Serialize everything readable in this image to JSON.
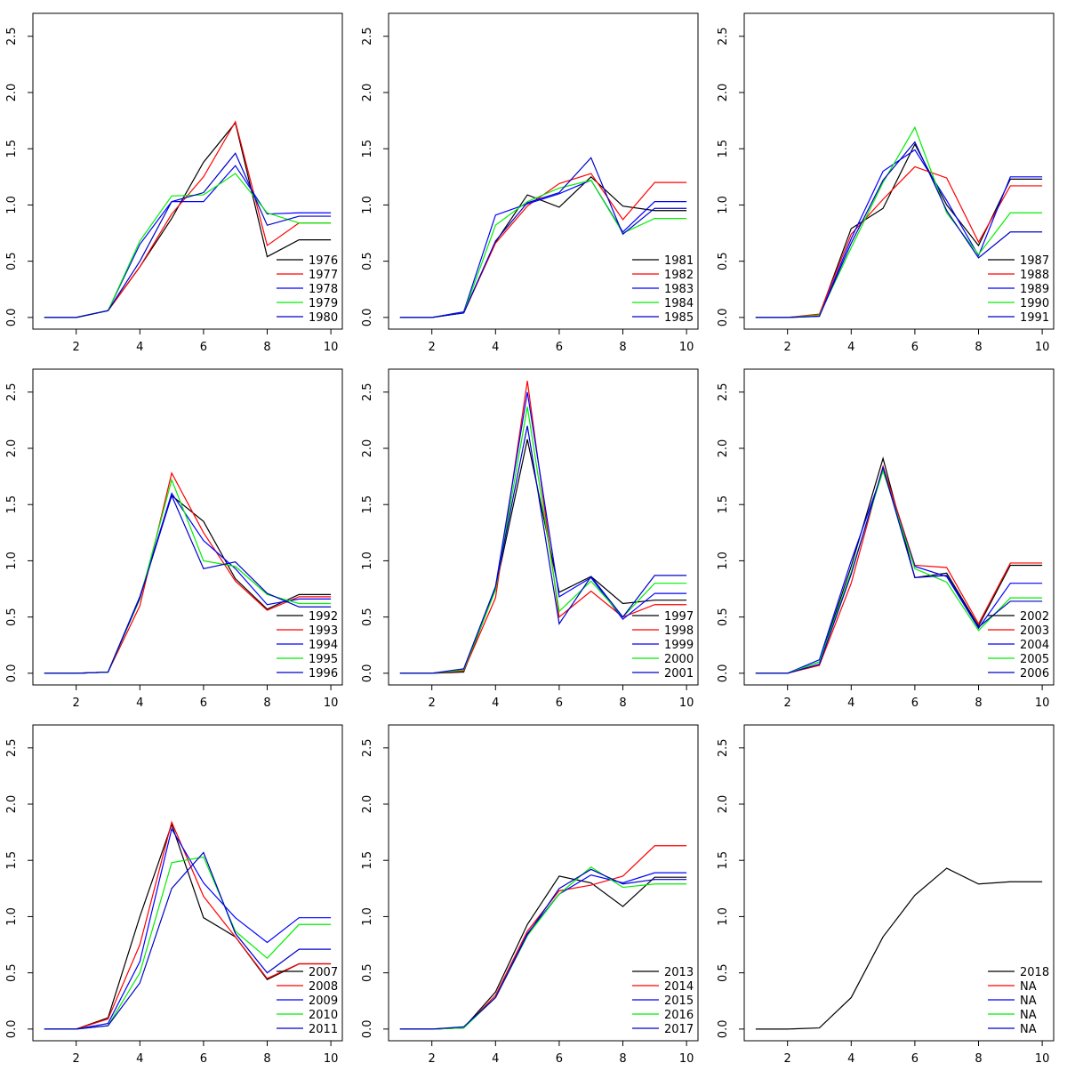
{
  "chart_data": [
    {
      "type": "line",
      "x": [
        1,
        2,
        3,
        4,
        5,
        6,
        7,
        8,
        9,
        10
      ],
      "xlim": [
        0.64,
        10.36
      ],
      "xticks": [
        2,
        4,
        6,
        8,
        10
      ],
      "ylim": [
        -0.104,
        2.704
      ],
      "yticks": [
        {
          "value": 0,
          "label": "0.0"
        },
        0.5,
        {
          "value": 1,
          "label": "1.0"
        },
        1.5,
        {
          "value": 2,
          "label": "2.0"
        },
        2.5
      ],
      "legend": "bottomright",
      "series": [
        {
          "name": "1976",
          "color": "#000000",
          "values": [
            0,
            0,
            0.06,
            0.45,
            0.88,
            1.38,
            1.73,
            0.54,
            0.69,
            0.69
          ]
        },
        {
          "name": "1977",
          "color": "#ff0000",
          "values": [
            0,
            0,
            0.06,
            0.45,
            0.92,
            1.25,
            1.74,
            0.64,
            0.84,
            0.84
          ]
        },
        {
          "name": "1978",
          "color": "#0000ff",
          "values": [
            0,
            0,
            0.06,
            0.65,
            1.03,
            1.03,
            1.35,
            0.92,
            0.93,
            0.93
          ]
        },
        {
          "name": "1979",
          "color": "#00ee00",
          "values": [
            0,
            0,
            0.06,
            0.68,
            1.08,
            1.09,
            1.28,
            0.93,
            0.84,
            0.84
          ]
        },
        {
          "name": "1980",
          "color": "#0000cc",
          "values": [
            0,
            0,
            0.06,
            0.5,
            1.03,
            1.11,
            1.46,
            0.82,
            0.9,
            0.9
          ]
        }
      ]
    },
    {
      "type": "line",
      "x": [
        1,
        2,
        3,
        4,
        5,
        6,
        7,
        8,
        9,
        10
      ],
      "xlim": [
        0.64,
        10.36
      ],
      "xticks": [
        2,
        4,
        6,
        8,
        10
      ],
      "ylim": [
        -0.104,
        2.704
      ],
      "yticks": [
        {
          "value": 0,
          "label": "0.0"
        },
        0.5,
        {
          "value": 1,
          "label": "1.0"
        },
        1.5,
        {
          "value": 2,
          "label": "2.0"
        },
        2.5
      ],
      "legend": "bottomright",
      "series": [
        {
          "name": "1981",
          "color": "#000000",
          "values": [
            0,
            0,
            0.04,
            0.67,
            1.09,
            0.98,
            1.25,
            0.99,
            0.95,
            0.95
          ]
        },
        {
          "name": "1982",
          "color": "#ff0000",
          "values": [
            0,
            0,
            0.04,
            0.66,
            0.99,
            1.19,
            1.28,
            0.87,
            1.2,
            1.2
          ]
        },
        {
          "name": "1983",
          "color": "#0000ff",
          "values": [
            0,
            0,
            0.05,
            0.91,
            1.01,
            1.1,
            1.22,
            0.76,
            1.03,
            1.03
          ]
        },
        {
          "name": "1984",
          "color": "#00ee00",
          "values": [
            0,
            0,
            0.04,
            0.82,
            1.03,
            1.15,
            1.22,
            0.75,
            0.88,
            0.88
          ]
        },
        {
          "name": "1985",
          "color": "#0000cc",
          "values": [
            0,
            0,
            0.04,
            0.68,
            1.02,
            1.11,
            1.42,
            0.74,
            0.97,
            0.97
          ]
        }
      ]
    },
    {
      "type": "line",
      "x": [
        1,
        2,
        3,
        4,
        5,
        6,
        7,
        8,
        9,
        10
      ],
      "xlim": [
        0.64,
        10.36
      ],
      "xticks": [
        2,
        4,
        6,
        8,
        10
      ],
      "ylim": [
        -0.104,
        2.704
      ],
      "yticks": [
        {
          "value": 0,
          "label": "0.0"
        },
        0.5,
        {
          "value": 1,
          "label": "1.0"
        },
        1.5,
        {
          "value": 2,
          "label": "2.0"
        },
        2.5
      ],
      "legend": "bottomright",
      "series": [
        {
          "name": "1987",
          "color": "#000000",
          "values": [
            0,
            0,
            0.02,
            0.79,
            0.97,
            1.54,
            1.0,
            0.64,
            1.23,
            1.23
          ]
        },
        {
          "name": "1988",
          "color": "#ff0000",
          "values": [
            0,
            0,
            0.03,
            0.74,
            1.05,
            1.34,
            1.24,
            0.67,
            1.17,
            1.17
          ]
        },
        {
          "name": "1989",
          "color": "#0000ff",
          "values": [
            0,
            0,
            0.01,
            0.7,
            1.3,
            1.49,
            1.04,
            0.55,
            1.25,
            1.25
          ]
        },
        {
          "name": "1990",
          "color": "#00ee00",
          "values": [
            0,
            0,
            0.02,
            0.62,
            1.2,
            1.69,
            0.93,
            0.56,
            0.93,
            0.93
          ]
        },
        {
          "name": "1991",
          "color": "#0000cc",
          "values": [
            0,
            0,
            0.01,
            0.66,
            1.22,
            1.56,
            0.95,
            0.53,
            0.76,
            0.76
          ]
        }
      ]
    },
    {
      "type": "line",
      "x": [
        1,
        2,
        3,
        4,
        5,
        6,
        7,
        8,
        9,
        10
      ],
      "xlim": [
        0.64,
        10.36
      ],
      "xticks": [
        2,
        4,
        6,
        8,
        10
      ],
      "ylim": [
        -0.104,
        2.704
      ],
      "yticks": [
        {
          "value": 0,
          "label": "0.0"
        },
        0.5,
        {
          "value": 1,
          "label": "1.0"
        },
        1.5,
        {
          "value": 2,
          "label": "2.0"
        },
        2.5
      ],
      "legend": "bottomright",
      "series": [
        {
          "name": "1992",
          "color": "#000000",
          "values": [
            0,
            0,
            0.01,
            0.68,
            1.58,
            1.35,
            0.84,
            0.57,
            0.7,
            0.7
          ]
        },
        {
          "name": "1993",
          "color": "#ff0000",
          "values": [
            0,
            0,
            0.01,
            0.6,
            1.78,
            1.25,
            0.82,
            0.56,
            0.68,
            0.68
          ]
        },
        {
          "name": "1994",
          "color": "#0000ff",
          "values": [
            0,
            0,
            0.01,
            0.68,
            1.6,
            1.18,
            0.93,
            0.61,
            0.66,
            0.66
          ]
        },
        {
          "name": "1995",
          "color": "#00ee00",
          "values": [
            0,
            0,
            0.01,
            0.66,
            1.72,
            1.0,
            0.95,
            0.7,
            0.62,
            0.62
          ]
        },
        {
          "name": "1996",
          "color": "#0000cc",
          "values": [
            0,
            0,
            0.01,
            0.67,
            1.58,
            0.93,
            0.99,
            0.71,
            0.59,
            0.59
          ]
        }
      ]
    },
    {
      "type": "line",
      "x": [
        1,
        2,
        3,
        4,
        5,
        6,
        7,
        8,
        9,
        10
      ],
      "xlim": [
        0.64,
        10.36
      ],
      "xticks": [
        2,
        4,
        6,
        8,
        10
      ],
      "ylim": [
        -0.104,
        2.704
      ],
      "yticks": [
        {
          "value": 0,
          "label": "0.0"
        },
        0.5,
        {
          "value": 1,
          "label": "1.0"
        },
        1.5,
        {
          "value": 2,
          "label": "2.0"
        },
        2.5
      ],
      "legend": "bottomright",
      "series": [
        {
          "name": "1997",
          "color": "#000000",
          "values": [
            0,
            0,
            0.01,
            0.75,
            2.08,
            0.72,
            0.86,
            0.62,
            0.65,
            0.65
          ]
        },
        {
          "name": "1998",
          "color": "#ff0000",
          "values": [
            0,
            0,
            0.02,
            0.67,
            2.6,
            0.5,
            0.73,
            0.5,
            0.61,
            0.61
          ]
        },
        {
          "name": "1999",
          "color": "#0000ff",
          "values": [
            0,
            0,
            0.03,
            0.77,
            2.5,
            0.68,
            0.85,
            0.48,
            0.71,
            0.71
          ]
        },
        {
          "name": "2000",
          "color": "#00ee00",
          "values": [
            0,
            0,
            0.03,
            0.74,
            2.37,
            0.55,
            0.82,
            0.5,
            0.8,
            0.8
          ]
        },
        {
          "name": "2001",
          "color": "#0000cc",
          "values": [
            0,
            0,
            0.04,
            0.77,
            2.2,
            0.44,
            0.86,
            0.5,
            0.87,
            0.87
          ]
        }
      ]
    },
    {
      "type": "line",
      "x": [
        1,
        2,
        3,
        4,
        5,
        6,
        7,
        8,
        9,
        10
      ],
      "xlim": [
        0.64,
        10.36
      ],
      "xticks": [
        2,
        4,
        6,
        8,
        10
      ],
      "ylim": [
        -0.104,
        2.704
      ],
      "yticks": [
        {
          "value": 0,
          "label": "0.0"
        },
        0.5,
        {
          "value": 1,
          "label": "1.0"
        },
        1.5,
        {
          "value": 2,
          "label": "2.0"
        },
        2.5
      ],
      "legend": "bottomright",
      "series": [
        {
          "name": "2002",
          "color": "#000000",
          "values": [
            0,
            0,
            0.1,
            0.95,
            1.91,
            0.85,
            0.89,
            0.42,
            0.96,
            0.96
          ]
        },
        {
          "name": "2003",
          "color": "#ff0000",
          "values": [
            0,
            0,
            0.07,
            0.8,
            1.84,
            0.96,
            0.94,
            0.44,
            0.98,
            0.98
          ]
        },
        {
          "name": "2004",
          "color": "#0000ff",
          "values": [
            0,
            0,
            0.12,
            1.0,
            1.8,
            0.95,
            0.86,
            0.4,
            0.8,
            0.8
          ]
        },
        {
          "name": "2005",
          "color": "#00ee00",
          "values": [
            0,
            0,
            0.1,
            0.9,
            1.8,
            0.93,
            0.81,
            0.38,
            0.67,
            0.67
          ]
        },
        {
          "name": "2006",
          "color": "#0000cc",
          "values": [
            0,
            0,
            0.08,
            0.88,
            1.83,
            0.85,
            0.87,
            0.41,
            0.64,
            0.64
          ]
        }
      ]
    },
    {
      "type": "line",
      "x": [
        1,
        2,
        3,
        4,
        5,
        6,
        7,
        8,
        9,
        10
      ],
      "xlim": [
        0.64,
        10.36
      ],
      "xticks": [
        2,
        4,
        6,
        8,
        10
      ],
      "ylim": [
        -0.104,
        2.704
      ],
      "yticks": [
        {
          "value": 0,
          "label": "0.0"
        },
        0.5,
        {
          "value": 1,
          "label": "1.0"
        },
        1.5,
        {
          "value": 2,
          "label": "2.0"
        },
        2.5
      ],
      "legend": "bottomright",
      "series": [
        {
          "name": "2007",
          "color": "#000000",
          "values": [
            0,
            0,
            0.1,
            1.0,
            1.82,
            0.99,
            0.82,
            0.44,
            0.58,
            0.58
          ]
        },
        {
          "name": "2008",
          "color": "#ff0000",
          "values": [
            0,
            0,
            0.09,
            0.75,
            1.84,
            1.18,
            0.82,
            0.45,
            0.58,
            0.58
          ]
        },
        {
          "name": "2009",
          "color": "#0000ff",
          "values": [
            0,
            0,
            0.05,
            0.6,
            1.78,
            1.3,
            0.99,
            0.77,
            0.99,
            0.99
          ]
        },
        {
          "name": "2010",
          "color": "#00ee00",
          "values": [
            0,
            0,
            0.03,
            0.5,
            1.48,
            1.53,
            0.87,
            0.63,
            0.93,
            0.93
          ]
        },
        {
          "name": "2011",
          "color": "#0000cc",
          "values": [
            0,
            0,
            0.03,
            0.41,
            1.25,
            1.57,
            0.85,
            0.5,
            0.71,
            0.71
          ]
        }
      ]
    },
    {
      "type": "line",
      "x": [
        1,
        2,
        3,
        4,
        5,
        6,
        7,
        8,
        9,
        10
      ],
      "xlim": [
        0.64,
        10.36
      ],
      "xticks": [
        2,
        4,
        6,
        8,
        10
      ],
      "ylim": [
        -0.104,
        2.704
      ],
      "yticks": [
        {
          "value": 0,
          "label": "0.0"
        },
        0.5,
        {
          "value": 1,
          "label": "1.0"
        },
        1.5,
        {
          "value": 2,
          "label": "2.0"
        },
        2.5
      ],
      "legend": "bottomright",
      "series": [
        {
          "name": "2013",
          "color": "#000000",
          "values": [
            0,
            0,
            0.01,
            0.33,
            0.93,
            1.36,
            1.3,
            1.09,
            1.35,
            1.35
          ]
        },
        {
          "name": "2014",
          "color": "#ff0000",
          "values": [
            0,
            0,
            0.01,
            0.3,
            0.87,
            1.23,
            1.28,
            1.36,
            1.63,
            1.63
          ]
        },
        {
          "name": "2015",
          "color": "#0000ff",
          "values": [
            0,
            0,
            0.01,
            0.28,
            0.85,
            1.2,
            1.37,
            1.3,
            1.39,
            1.39
          ]
        },
        {
          "name": "2016",
          "color": "#00ee00",
          "values": [
            0,
            0,
            0.01,
            0.28,
            0.83,
            1.2,
            1.44,
            1.26,
            1.29,
            1.29
          ]
        },
        {
          "name": "2017",
          "color": "#0000cc",
          "values": [
            0,
            0,
            0.02,
            0.28,
            0.84,
            1.25,
            1.42,
            1.29,
            1.33,
            1.33
          ]
        }
      ]
    },
    {
      "type": "line",
      "x": [
        1,
        2,
        3,
        4,
        5,
        6,
        7,
        8,
        9,
        10
      ],
      "xlim": [
        0.64,
        10.36
      ],
      "xticks": [
        2,
        4,
        6,
        8,
        10
      ],
      "ylim": [
        -0.104,
        2.704
      ],
      "yticks": [
        {
          "value": 0,
          "label": "0.0"
        },
        0.5,
        {
          "value": 1,
          "label": "1.0"
        },
        1.5,
        {
          "value": 2,
          "label": "2.0"
        },
        2.5
      ],
      "legend": "bottomright",
      "series": [
        {
          "name": "2018",
          "color": "#000000",
          "values": [
            0,
            0,
            0.01,
            0.28,
            0.82,
            1.19,
            1.43,
            1.29,
            1.31,
            1.31
          ]
        },
        {
          "name": "NA",
          "color": "#ff0000",
          "values": [
            null,
            null,
            null,
            null,
            null,
            null,
            null,
            null,
            null,
            null
          ]
        },
        {
          "name": "NA",
          "color": "#0000ff",
          "values": [
            null,
            null,
            null,
            null,
            null,
            null,
            null,
            null,
            null,
            null
          ]
        },
        {
          "name": "NA",
          "color": "#00ee00",
          "values": [
            null,
            null,
            null,
            null,
            null,
            null,
            null,
            null,
            null,
            null
          ]
        },
        {
          "name": "NA",
          "color": "#0000cc",
          "values": [
            null,
            null,
            null,
            null,
            null,
            null,
            null,
            null,
            null,
            null
          ]
        }
      ]
    }
  ]
}
